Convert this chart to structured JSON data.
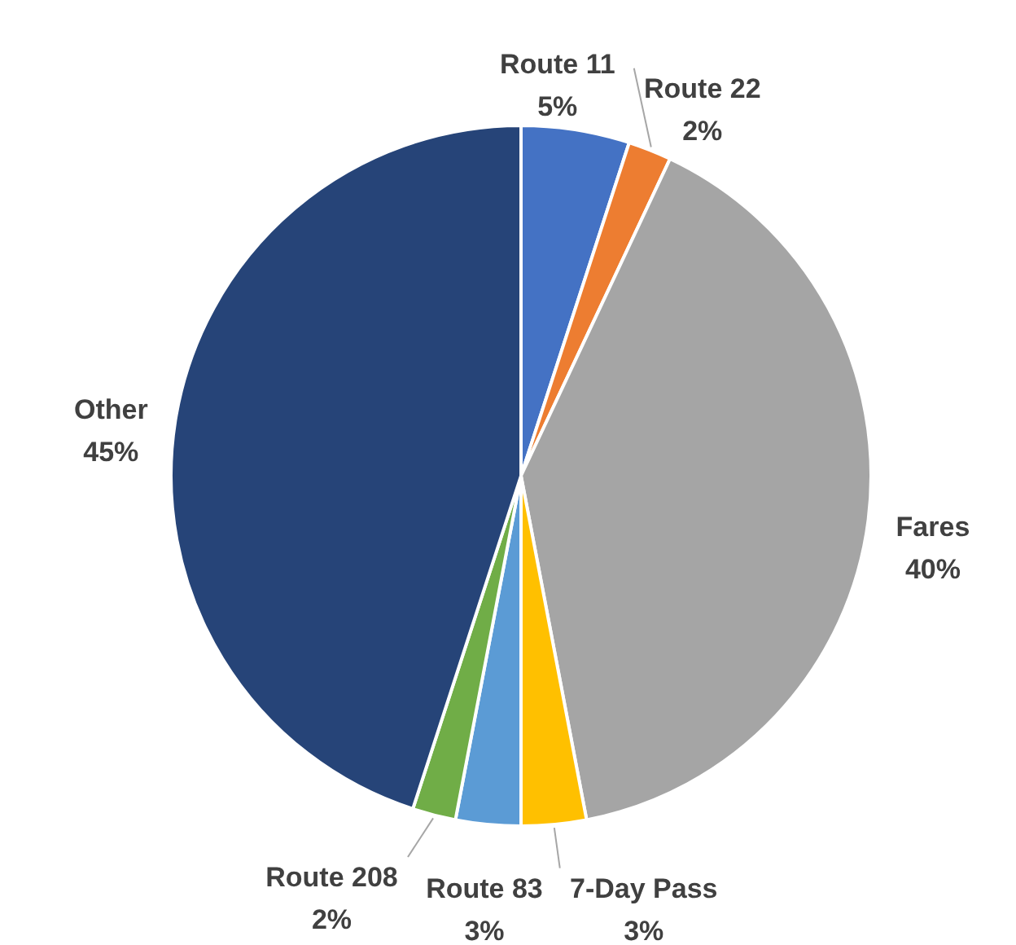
{
  "chart_data": {
    "type": "pie",
    "categories": [
      "Route 11",
      "Route 22",
      "Fares",
      "7-Day Pass",
      "Route 83",
      "Route 208",
      "Other"
    ],
    "values": [
      5,
      2,
      40,
      3,
      3,
      2,
      45
    ],
    "value_labels": [
      "5%",
      "2%",
      "40%",
      "3%",
      "3%",
      "2%",
      "45%"
    ],
    "colors": [
      "#4472c4",
      "#ed7d31",
      "#a5a5a5",
      "#ffc000",
      "#5b9bd5",
      "#70ad47",
      "#264478"
    ]
  }
}
